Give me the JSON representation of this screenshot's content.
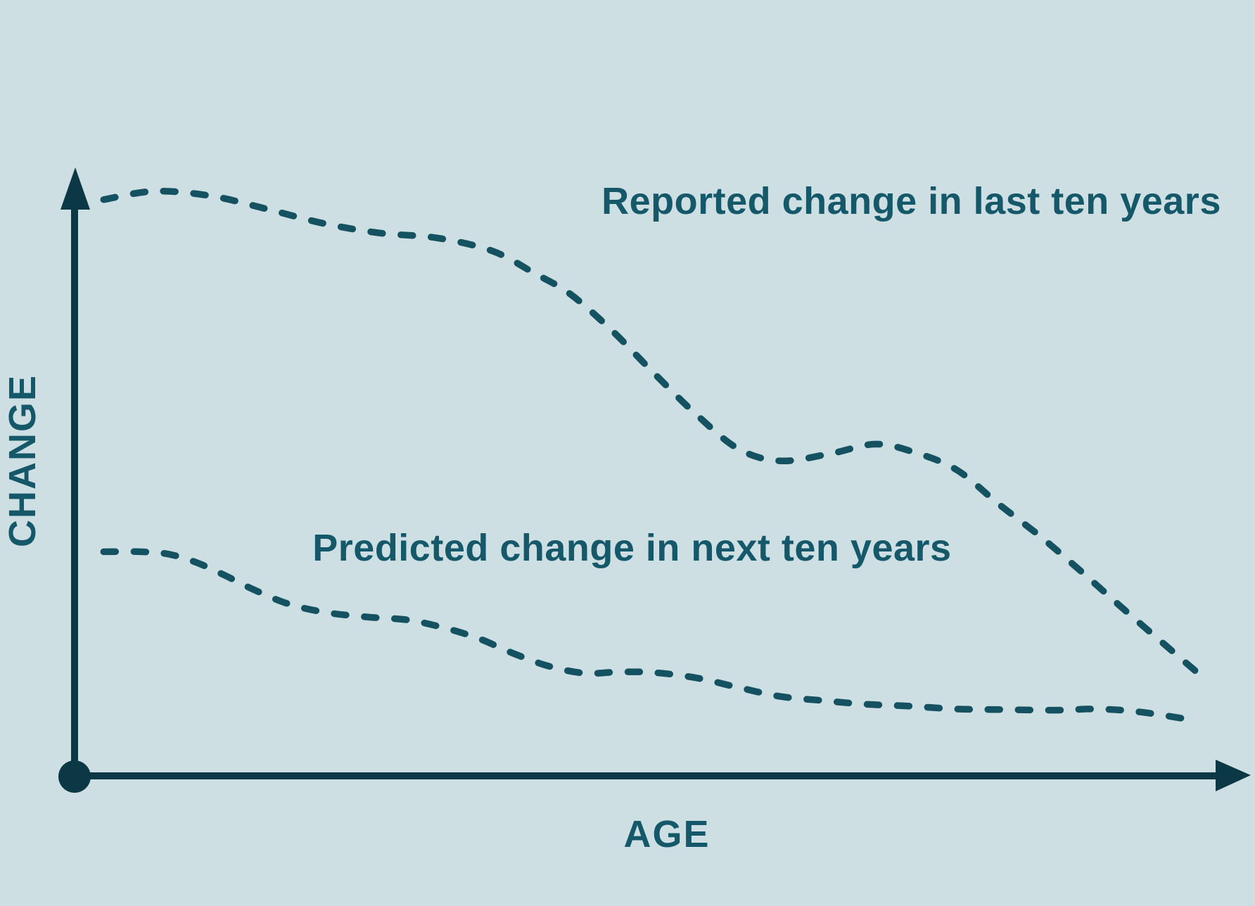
{
  "page": {
    "background_color": "#CEDFE3"
  },
  "chart_data": {
    "type": "line",
    "title": "",
    "xlabel": "AGE",
    "ylabel": "CHANGE",
    "grid": false,
    "legend_position": "inline-annotations-on-plot",
    "line_style": "dashed",
    "axes": {
      "x": {
        "label": "AGE",
        "min": 0,
        "max": 100,
        "tick_labels": "none",
        "arrow": true
      },
      "y": {
        "label": "CHANGE",
        "min": 0,
        "max": 100,
        "tick_labels": "none",
        "arrow": true
      },
      "origin_marker": "filled-dot"
    },
    "colors": {
      "background": "#CEDFE3",
      "axis": "#0C3846",
      "series": "#155261",
      "text": "#14586A"
    },
    "series": [
      {
        "name": "Reported change in last ten years",
        "style": "dashed",
        "points": [
          [
            2.5,
            96.5
          ],
          [
            6.9,
            97.9
          ],
          [
            11.8,
            97.1
          ],
          [
            16.6,
            94.9
          ],
          [
            21.5,
            92.5
          ],
          [
            26.3,
            90.9
          ],
          [
            31.2,
            90.1
          ],
          [
            36.0,
            87.9
          ],
          [
            39.6,
            84.2
          ],
          [
            42.7,
            80.7
          ],
          [
            46.3,
            74.6
          ],
          [
            49.9,
            67.5
          ],
          [
            53.6,
            60.5
          ],
          [
            57.2,
            54.8
          ],
          [
            60.8,
            52.8
          ],
          [
            65.1,
            54.0
          ],
          [
            69.0,
            55.6
          ],
          [
            72.4,
            54.2
          ],
          [
            76.0,
            51.3
          ],
          [
            79.6,
            45.6
          ],
          [
            83.3,
            40.0
          ],
          [
            86.9,
            34.0
          ],
          [
            90.5,
            27.8
          ],
          [
            94.2,
            21.6
          ],
          [
            97.7,
            15.8
          ]
        ]
      },
      {
        "name": "Predicted change in next ten years",
        "style": "dashed",
        "points": [
          [
            2.5,
            37.6
          ],
          [
            5.7,
            37.6
          ],
          [
            8.1,
            37.2
          ],
          [
            10.5,
            35.8
          ],
          [
            13.0,
            33.6
          ],
          [
            15.4,
            31.3
          ],
          [
            18.4,
            28.9
          ],
          [
            21.5,
            27.5
          ],
          [
            25.1,
            26.7
          ],
          [
            28.7,
            26.2
          ],
          [
            31.8,
            24.9
          ],
          [
            34.8,
            23.1
          ],
          [
            37.8,
            20.6
          ],
          [
            40.8,
            18.5
          ],
          [
            43.9,
            17.3
          ],
          [
            46.9,
            17.5
          ],
          [
            49.9,
            17.4
          ],
          [
            53.6,
            16.5
          ],
          [
            57.2,
            14.9
          ],
          [
            60.8,
            13.4
          ],
          [
            64.5,
            12.7
          ],
          [
            68.1,
            12.1
          ],
          [
            71.8,
            11.8
          ],
          [
            76.0,
            11.3
          ],
          [
            80.2,
            11.2
          ],
          [
            84.5,
            11.1
          ],
          [
            88.1,
            11.3
          ],
          [
            91.8,
            10.8
          ],
          [
            96.5,
            9.4
          ]
        ]
      }
    ],
    "annotations": [
      {
        "series_index": 0,
        "age": 45.4,
        "change": 96.2,
        "align": "left"
      },
      {
        "series_index": 1,
        "age": 20.5,
        "change": 38.2,
        "align": "left"
      }
    ]
  }
}
